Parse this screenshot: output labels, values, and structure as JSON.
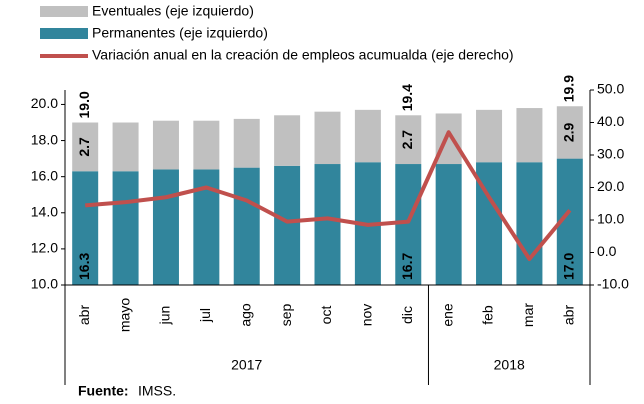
{
  "chart_data": {
    "type": "bar-line",
    "categories": [
      "abr",
      "mayo",
      "jun",
      "jul",
      "ago",
      "sep",
      "oct",
      "nov",
      "dic",
      "ene",
      "feb",
      "mar",
      "abr"
    ],
    "groups": [
      "2017",
      "2017",
      "2017",
      "2017",
      "2017",
      "2017",
      "2017",
      "2017",
      "2017",
      "2018",
      "2018",
      "2018",
      "2018"
    ],
    "series": [
      {
        "name": "Permanentes (eje izquierdo)",
        "color": "#31859c",
        "axis": "y",
        "values": [
          16.3,
          16.3,
          16.4,
          16.4,
          16.5,
          16.6,
          16.7,
          16.8,
          16.7,
          16.7,
          16.8,
          16.8,
          17.0
        ],
        "value_labels": [
          "16.3",
          null,
          null,
          null,
          null,
          null,
          null,
          null,
          "16.7",
          null,
          null,
          null,
          "17.0"
        ]
      },
      {
        "name": "Eventuales (eje izquierdo)",
        "color": "#c0c0c0",
        "axis": "y",
        "values": [
          2.7,
          2.7,
          2.7,
          2.7,
          2.7,
          2.8,
          2.9,
          2.9,
          2.7,
          2.8,
          2.9,
          3.0,
          2.9
        ],
        "value_labels": [
          "2.7",
          null,
          null,
          null,
          null,
          null,
          null,
          null,
          "2.7",
          null,
          null,
          null,
          "2.9"
        ]
      },
      {
        "name": "Variación anual en la creación de empleos acumualda (eje derecho)",
        "color": "#c0504d",
        "axis": "y2",
        "values": [
          14.5,
          15.5,
          17,
          20,
          16,
          9.5,
          10.5,
          8.5,
          9.5,
          37,
          17,
          -2,
          13
        ]
      }
    ],
    "total_labels": [
      "19.0",
      null,
      null,
      null,
      null,
      null,
      null,
      null,
      "19.4",
      null,
      null,
      null,
      "19.9"
    ],
    "ylim": [
      10,
      20.8
    ],
    "yticks": [
      {
        "value": 10,
        "label": "10.0"
      },
      {
        "value": 12,
        "label": "12.0"
      },
      {
        "value": 14,
        "label": "14.0"
      },
      {
        "value": 16,
        "label": "16.0"
      },
      {
        "value": 18,
        "label": "18.0"
      },
      {
        "value": 20,
        "label": "20.0"
      }
    ],
    "y2lim": [
      -10,
      50
    ],
    "y2ticks": [
      {
        "value": -10,
        "label": "-10.0"
      },
      {
        "value": 0,
        "label": "0.0"
      },
      {
        "value": 10,
        "label": "10.0"
      },
      {
        "value": 20,
        "label": "20.0"
      },
      {
        "value": 30,
        "label": "30.0"
      },
      {
        "value": 40,
        "label": "40.0"
      },
      {
        "value": 50,
        "label": "50.0"
      }
    ],
    "source_label": "Fuente:",
    "source": "IMSS."
  }
}
